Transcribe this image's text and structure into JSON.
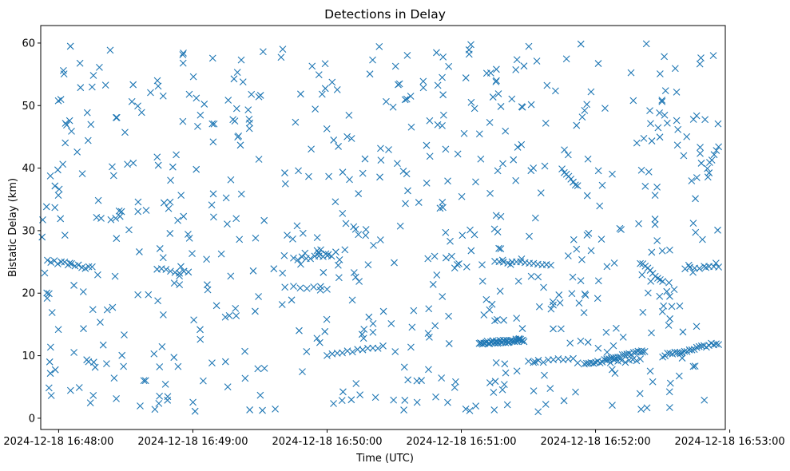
{
  "chart_data": {
    "type": "scatter",
    "title": "Detections in Delay",
    "xlabel": "Time (UTC)",
    "ylabel": "Bistatic Delay (km)",
    "marker": "x",
    "color": "#1f77b4",
    "xlim": [
      "2024-12-18 16:47:52",
      "2024-12-18 16:52:58"
    ],
    "ylim": [
      -1.8,
      62.8
    ],
    "x_ticks": [
      "2024-12-18 16:48:00",
      "2024-12-18 16:49:00",
      "2024-12-18 16:50:00",
      "2024-12-18 16:51:00",
      "2024-12-18 16:52:00",
      "2024-12-18 16:53:00"
    ],
    "y_ticks": [
      "0",
      "10",
      "20",
      "30",
      "40",
      "50",
      "60"
    ],
    "grid": false,
    "time_range": [
      "2024-12-18 16:47:52",
      "2024-12-18 16:52:56"
    ],
    "series": [
      {
        "tracks": [
          {
            "from": [
              "2024-12-18 16:47:55",
              25.2
            ],
            "to": [
              "2024-12-18 16:48:15",
              24.0
            ],
            "n": 14
          },
          {
            "from": [
              "2024-12-18 16:48:44",
              23.8
            ],
            "to": [
              "2024-12-18 16:48:58",
              23.2
            ],
            "n": 8
          },
          {
            "from": [
              "2024-12-18 16:49:45",
              25.5
            ],
            "to": [
              "2024-12-18 16:50:02",
              25.8
            ],
            "n": 10
          },
          {
            "from": [
              "2024-12-18 16:49:45",
              21.0
            ],
            "to": [
              "2024-12-18 16:50:00",
              20.6
            ],
            "n": 6
          },
          {
            "from": [
              "2024-12-18 16:50:00",
              10.2
            ],
            "to": [
              "2024-12-18 16:50:25",
              11.5
            ],
            "n": 12
          },
          {
            "from": [
              "2024-12-18 16:51:08",
              12.0
            ],
            "to": [
              "2024-12-18 16:51:28",
              12.5
            ],
            "n": 40
          },
          {
            "from": [
              "2024-12-18 16:51:30",
              9.0
            ],
            "to": [
              "2024-12-18 16:51:50",
              9.5
            ],
            "n": 10
          },
          {
            "from": [
              "2024-12-18 16:51:55",
              8.5
            ],
            "to": [
              "2024-12-18 16:52:22",
              10.8
            ],
            "n": 28
          },
          {
            "from": [
              "2024-12-18 16:52:05",
              9.0
            ],
            "to": [
              "2024-12-18 16:52:20",
              9.3
            ],
            "n": 10
          },
          {
            "from": [
              "2024-12-18 16:52:30",
              10.0
            ],
            "to": [
              "2024-12-18 16:52:55",
              12.0
            ],
            "n": 24
          },
          {
            "from": [
              "2024-12-18 16:51:15",
              25.0
            ],
            "to": [
              "2024-12-18 16:51:40",
              24.5
            ],
            "n": 14
          },
          {
            "from": [
              "2024-12-18 16:51:45",
              39.8
            ],
            "to": [
              "2024-12-18 16:51:52",
              37.0
            ],
            "n": 8
          },
          {
            "from": [
              "2024-12-18 16:52:20",
              24.8
            ],
            "to": [
              "2024-12-18 16:52:30",
              22.0
            ],
            "n": 10
          },
          {
            "from": [
              "2024-12-18 16:52:40",
              24.0
            ],
            "to": [
              "2024-12-18 16:52:55",
              24.3
            ],
            "n": 8
          },
          {
            "from": [
              "2024-12-18 16:52:50",
              40.0
            ],
            "to": [
              "2024-12-18 16:52:55",
              43.5
            ],
            "n": 6
          }
        ],
        "scatter_count": 640,
        "y_range": [
          1.0,
          60.0
        ]
      }
    ]
  }
}
